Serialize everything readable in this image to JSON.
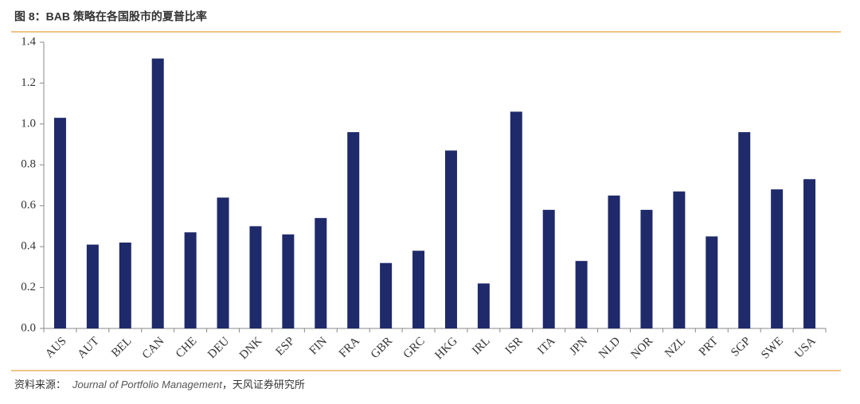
{
  "chart_data": {
    "type": "bar",
    "title": "图 8：BAB 策略在各国股市的夏普比率",
    "categories": [
      "AUS",
      "AUT",
      "BEL",
      "CAN",
      "CHE",
      "DEU",
      "DNK",
      "ESP",
      "FIN",
      "FRA",
      "GBR",
      "GRC",
      "HKG",
      "IRL",
      "ISR",
      "ITA",
      "JPN",
      "NLD",
      "NOR",
      "NZL",
      "PRT",
      "SGP",
      "SWE",
      "USA"
    ],
    "values": [
      1.03,
      0.41,
      0.42,
      1.32,
      0.47,
      0.64,
      0.5,
      0.46,
      0.54,
      0.96,
      0.32,
      0.38,
      0.87,
      0.22,
      1.06,
      0.58,
      0.33,
      0.65,
      0.58,
      0.67,
      0.45,
      0.96,
      0.68,
      0.73
    ],
    "color": "#1f2a6b",
    "ylim": [
      0,
      1.4
    ],
    "yticks": [
      {
        "value": 0,
        "label": "0.0"
      },
      0.2,
      0.4,
      0.6,
      0.8,
      {
        "value": 1,
        "label": "1.0"
      },
      1.2,
      1.4
    ],
    "grid": false
  },
  "source": {
    "prefix": "资料来源：",
    "journal": "Journal of Portfolio Management",
    "suffix": "，天风证券研究所"
  }
}
